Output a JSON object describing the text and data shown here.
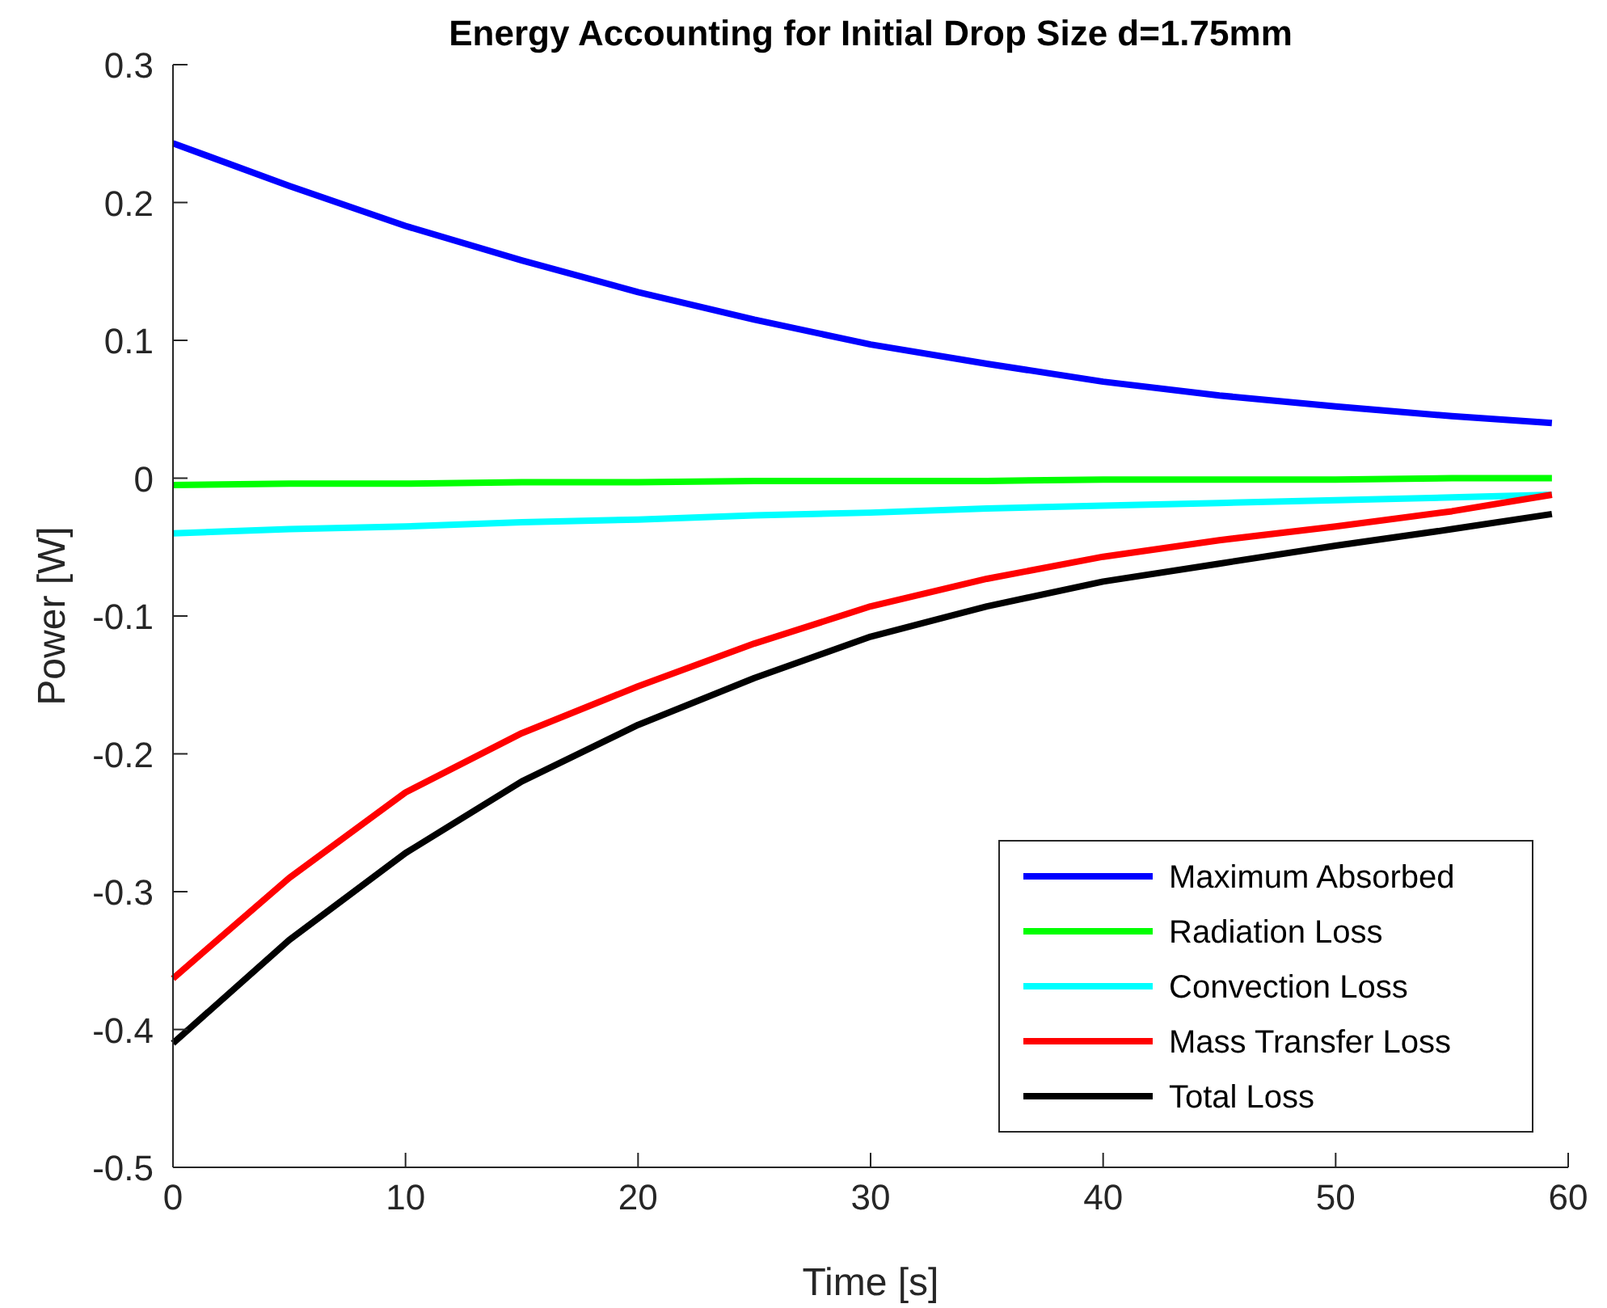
{
  "chart_data": {
    "type": "line",
    "title": "Energy Accounting for Initial Drop Size d=1.75mm",
    "xlabel": "Time [s]",
    "ylabel": "Power [W]",
    "xlim": [
      0,
      60
    ],
    "xticks": [
      0,
      10,
      20,
      30,
      40,
      50,
      60
    ],
    "ylim": [
      -0.5,
      0.3
    ],
    "yticks": [
      -0.5,
      -0.4,
      -0.3,
      -0.2,
      -0.1,
      0,
      0.1,
      0.2,
      0.3
    ],
    "x": [
      0,
      5,
      10,
      15,
      20,
      25,
      30,
      35,
      40,
      45,
      50,
      55,
      59.3
    ],
    "series": [
      {
        "name": "Maximum Absorbed",
        "color": "#0000ff",
        "values": [
          0.243,
          0.212,
          0.183,
          0.158,
          0.135,
          0.115,
          0.097,
          0.083,
          0.07,
          0.06,
          0.052,
          0.045,
          0.04
        ]
      },
      {
        "name": "Radiation Loss",
        "color": "#00ff00",
        "values": [
          -0.005,
          -0.004,
          -0.004,
          -0.003,
          -0.003,
          -0.002,
          -0.002,
          -0.002,
          -0.001,
          -0.001,
          -0.001,
          0,
          0
        ]
      },
      {
        "name": "Convection Loss",
        "color": "#00ffff",
        "values": [
          -0.04,
          -0.037,
          -0.035,
          -0.032,
          -0.03,
          -0.027,
          -0.025,
          -0.022,
          -0.02,
          -0.018,
          -0.016,
          -0.014,
          -0.012
        ]
      },
      {
        "name": "Mass Transfer Loss",
        "color": "#ff0000",
        "values": [
          -0.363,
          -0.29,
          -0.228,
          -0.185,
          -0.151,
          -0.12,
          -0.093,
          -0.073,
          -0.057,
          -0.045,
          -0.035,
          -0.024,
          -0.012
        ]
      },
      {
        "name": "Total Loss",
        "color": "#000000",
        "values": [
          -0.41,
          -0.335,
          -0.272,
          -0.22,
          -0.179,
          -0.145,
          -0.115,
          -0.093,
          -0.075,
          -0.062,
          -0.049,
          -0.037,
          -0.026
        ]
      }
    ],
    "legend": "bottom right",
    "grid": false,
    "line_style": "solid",
    "marker": "none"
  }
}
